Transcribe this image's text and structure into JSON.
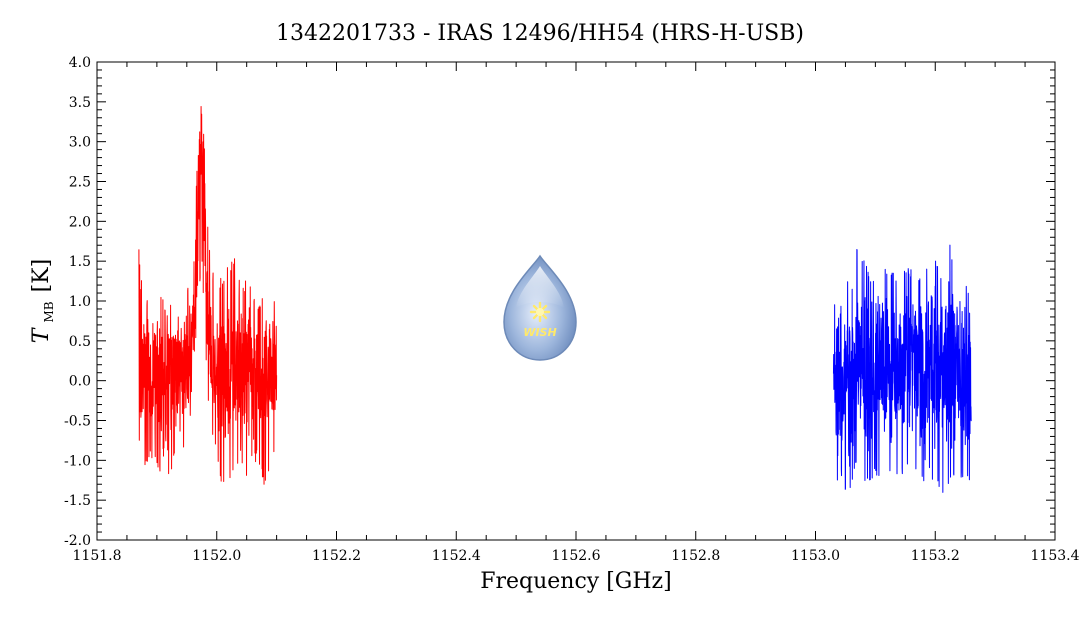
{
  "chart_data": {
    "type": "line",
    "title": "1342201733 - IRAS 12496/HH54 (HRS-H-USB)",
    "xlabel": "Frequency [GHz]",
    "ylabel": {
      "main": "T",
      "sub": "MB",
      "unit": "[K]"
    },
    "xlim": [
      1151.8,
      1153.4
    ],
    "ylim": [
      -2.0,
      4.0
    ],
    "x_ticks": [
      1151.8,
      1152.0,
      1152.2,
      1152.4,
      1152.6,
      1152.8,
      1153.0,
      1153.2,
      1153.4
    ],
    "x_tick_labels": [
      "1151.8",
      "1152.0",
      "1152.2",
      "1152.4",
      "1152.6",
      "1152.8",
      "1153.0",
      "1153.2",
      "1153.4"
    ],
    "y_ticks": [
      -2.0,
      -1.5,
      -1.0,
      -0.5,
      0.0,
      0.5,
      1.0,
      1.5,
      2.0,
      2.5,
      3.0,
      3.5,
      4.0
    ],
    "y_tick_labels": [
      "-2.0",
      "-1.5",
      "-1.0",
      "-0.5",
      "0.0",
      "0.5",
      "1.0",
      "1.5",
      "2.0",
      "2.5",
      "3.0",
      "3.5",
      "4.0"
    ],
    "grid": false,
    "series": [
      {
        "color": "#ff0000",
        "x": [
          1151.87,
          1151.88,
          1151.89,
          1151.9,
          1151.91,
          1151.92,
          1151.93,
          1151.94,
          1151.95,
          1151.96,
          1151.965,
          1151.97,
          1151.975,
          1151.98,
          1151.985,
          1151.99,
          1152.0,
          1152.01,
          1152.02,
          1152.03,
          1152.04,
          1152.05,
          1152.06,
          1152.07,
          1152.08,
          1152.09,
          1152.1
        ],
        "y": [
          0.2,
          0.3,
          0.1,
          0.2,
          -0.1,
          0.2,
          0.1,
          0.3,
          0.2,
          0.5,
          1.2,
          2.5,
          3.0,
          2.2,
          1.0,
          0.2,
          0.1,
          0.2,
          0.0,
          0.2,
          0.1,
          0.3,
          0.2,
          0.1,
          0.2,
          0.1,
          0.2
        ],
        "y_max": [
          1.65,
          1.0,
          1.15,
          1.2,
          1.1,
          0.9,
          1.1,
          1.0,
          1.2,
          1.4,
          2.3,
          3.2,
          3.7,
          2.9,
          2.0,
          1.4,
          1.3,
          1.3,
          1.5,
          1.55,
          1.2,
          1.3,
          1.1,
          1.0,
          1.2,
          1.1,
          1.05
        ],
        "y_min": [
          -0.8,
          -1.15,
          -1.0,
          -1.05,
          -1.35,
          -1.25,
          -1.0,
          -1.1,
          -0.8,
          -0.4,
          0.0,
          1.0,
          1.5,
          0.6,
          -0.3,
          -0.7,
          -0.9,
          -1.4,
          -1.35,
          -1.1,
          -1.0,
          -1.25,
          -1.05,
          -1.0,
          -1.4,
          -1.2,
          -0.8
        ]
      },
      {
        "color": "#0000ff",
        "x": [
          1153.03,
          1153.04,
          1153.05,
          1153.06,
          1153.07,
          1153.08,
          1153.09,
          1153.1,
          1153.11,
          1153.12,
          1153.13,
          1153.14,
          1153.15,
          1153.16,
          1153.17,
          1153.18,
          1153.19,
          1153.2,
          1153.21,
          1153.22,
          1153.23,
          1153.24,
          1153.25,
          1153.26
        ],
        "y": [
          0.1,
          0.2,
          0.0,
          0.2,
          0.1,
          0.2,
          0.3,
          0.1,
          0.2,
          0.0,
          0.2,
          0.1,
          0.3,
          0.1,
          0.2,
          0.0,
          0.2,
          0.1,
          0.3,
          0.1,
          0.2,
          0.0,
          0.1,
          0.1
        ],
        "y_max": [
          1.25,
          1.1,
          1.3,
          1.2,
          1.75,
          1.6,
          1.4,
          1.3,
          1.5,
          1.45,
          1.4,
          1.35,
          1.5,
          1.4,
          1.3,
          1.5,
          1.45,
          1.55,
          1.4,
          2.05,
          1.45,
          1.55,
          1.35,
          1.1
        ],
        "y_min": [
          -1.35,
          -1.2,
          -1.4,
          -1.45,
          -1.0,
          -1.3,
          -1.35,
          -1.2,
          -1.2,
          -1.1,
          -1.3,
          -1.25,
          -1.2,
          -1.15,
          -1.1,
          -1.35,
          -1.2,
          -1.3,
          -1.4,
          -1.45,
          -1.2,
          -1.3,
          -1.2,
          -1.3
        ]
      }
    ],
    "logo": {
      "text": "WISH",
      "position": "center"
    }
  }
}
